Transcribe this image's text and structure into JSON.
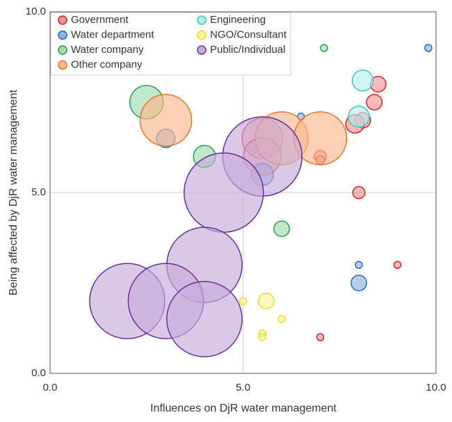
{
  "chart_data": {
    "type": "scatter",
    "xlabel": "Influences on DjR water management",
    "ylabel": "Being affected by DjR water management",
    "xlim": [
      0,
      10
    ],
    "ylim": [
      0,
      10
    ],
    "xticks": [
      {
        "value": 0,
        "label": "0.0"
      },
      {
        "value": 5,
        "label": "5.0"
      },
      {
        "value": 10,
        "label": "10.0"
      }
    ],
    "yticks": [
      {
        "value": 0,
        "label": "0.0"
      },
      {
        "value": 5,
        "label": "5.0"
      },
      {
        "value": 10,
        "label": "10.0"
      }
    ],
    "grid": true,
    "legend": "upper left",
    "series": [
      {
        "name": "Government",
        "color": "#f29494",
        "stroke": "#e0201b",
        "x": [
          5.5,
          5.5,
          8.5,
          8.4,
          8.1,
          7.9,
          7.0,
          7.0,
          8.0,
          9.0,
          7.0
        ],
        "values": [
          6.5,
          6.0,
          8.0,
          7.5,
          7.0,
          6.9,
          6.0,
          5.9,
          5.0,
          3.0,
          1.0
        ],
        "sizes": [
          34,
          29,
          5,
          5,
          5,
          7,
          3,
          1.5,
          3,
          1,
          1
        ]
      },
      {
        "name": "Water department",
        "color": "#8fb3dc",
        "stroke": "#1f6fc0",
        "x": [
          9.8,
          6.5,
          3.0,
          5.5,
          8.0,
          8.0
        ],
        "values": [
          9.0,
          7.1,
          6.5,
          5.5,
          3.0,
          2.5
        ],
        "sizes": [
          1,
          1,
          7,
          10,
          1,
          5
        ]
      },
      {
        "name": "Water company",
        "color": "#9fdcaf",
        "stroke": "#1fa34a",
        "x": [
          7.1,
          2.5,
          4.0,
          6.0
        ],
        "values": [
          9.0,
          7.5,
          6.0,
          4.0
        ],
        "sizes": [
          1,
          23,
          10,
          5
        ]
      },
      {
        "name": "Other company",
        "color": "#f9b98e",
        "stroke": "#f07020",
        "x": [
          3.0,
          6.0,
          7.0
        ],
        "values": [
          7.0,
          6.5,
          6.5
        ],
        "sizes": [
          55,
          58,
          58
        ]
      },
      {
        "name": "Engineering",
        "color": "#b7ecec",
        "stroke": "#3cc6c6",
        "x": [
          8.1,
          8.0
        ],
        "values": [
          8.1,
          7.1
        ],
        "sizes": [
          9,
          9
        ]
      },
      {
        "name": "NGO/Consultant",
        "color": "#f7f59a",
        "stroke": "#e8e020",
        "x": [
          5.6,
          5.0,
          6.0,
          5.5,
          5.5
        ],
        "values": [
          2.0,
          2.0,
          1.5,
          1.1,
          1.0
        ],
        "sizes": [
          5,
          1,
          1,
          1,
          1
        ]
      },
      {
        "name": "Public/Individual",
        "color": "#c6acd9",
        "stroke": "#6a2c9a",
        "x": [
          5.5,
          4.5,
          4.0,
          2.0,
          3.0,
          4.0
        ],
        "values": [
          6.0,
          5.0,
          3.0,
          2.0,
          2.0,
          1.5
        ],
        "sizes": [
          130,
          130,
          117,
          117,
          117,
          117
        ]
      }
    ]
  }
}
